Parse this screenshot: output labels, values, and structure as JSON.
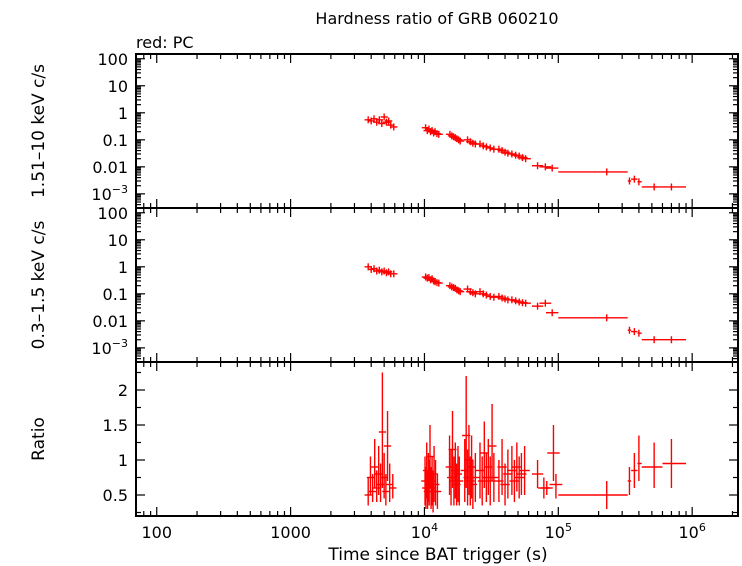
{
  "chart_data": {
    "type": "scatter",
    "title": "Hardness ratio of GRB 060210",
    "legend_text": "red: PC",
    "xlabel": "Time since BAT trigger (s)",
    "x_scale": "log",
    "xlim": [
      70,
      2200000
    ],
    "x_tick_labels": [
      {
        "value": 100,
        "base": "100",
        "exp": ""
      },
      {
        "value": 1000,
        "base": "1000",
        "exp": ""
      },
      {
        "value": 10000,
        "base": "10",
        "exp": "4"
      },
      {
        "value": 100000,
        "base": "10",
        "exp": "5"
      },
      {
        "value": 1000000,
        "base": "10",
        "exp": "6"
      }
    ],
    "series_color": "#ff0000",
    "panels": [
      {
        "ylabel": "1.51–10 keV c/s",
        "y_scale": "log",
        "ylim": [
          0.0003,
          150
        ],
        "y_tick_labels": [
          {
            "value": 100,
            "base": "100",
            "exp": ""
          },
          {
            "value": 10,
            "base": "10",
            "exp": ""
          },
          {
            "value": 1,
            "base": "1",
            "exp": ""
          },
          {
            "value": 0.1,
            "base": "0.1",
            "exp": ""
          },
          {
            "value": 0.01,
            "base": "0.01",
            "exp": ""
          },
          {
            "value": 0.001,
            "base": "10",
            "exp": "−3"
          }
        ],
        "points": [
          [
            3800,
            0.55
          ],
          [
            4000,
            0.5
          ],
          [
            4200,
            0.6
          ],
          [
            4400,
            0.45
          ],
          [
            4600,
            0.55
          ],
          [
            4800,
            0.4
          ],
          [
            5000,
            0.7
          ],
          [
            5200,
            0.45
          ],
          [
            5400,
            0.5
          ],
          [
            5600,
            0.35
          ],
          [
            5900,
            0.3
          ],
          [
            10200,
            0.28
          ],
          [
            10500,
            0.22
          ],
          [
            10800,
            0.25
          ],
          [
            11100,
            0.2
          ],
          [
            11400,
            0.22
          ],
          [
            11700,
            0.18
          ],
          [
            12000,
            0.2
          ],
          [
            12400,
            0.17
          ],
          [
            12800,
            0.16
          ],
          [
            15500,
            0.16
          ],
          [
            16000,
            0.14
          ],
          [
            16500,
            0.13
          ],
          [
            17000,
            0.12
          ],
          [
            17500,
            0.11
          ],
          [
            18000,
            0.1
          ],
          [
            18500,
            0.09
          ],
          [
            21000,
            0.1
          ],
          [
            22000,
            0.085
          ],
          [
            23000,
            0.075
          ],
          [
            24000,
            0.07
          ],
          [
            26000,
            0.07
          ],
          [
            27500,
            0.06
          ],
          [
            29000,
            0.055
          ],
          [
            31000,
            0.05
          ],
          [
            33000,
            0.045
          ],
          [
            36000,
            0.045
          ],
          [
            38000,
            0.04
          ],
          [
            40000,
            0.035
          ],
          [
            42000,
            0.032
          ],
          [
            45000,
            0.03
          ],
          [
            48000,
            0.027
          ],
          [
            51000,
            0.025
          ],
          [
            54000,
            0.022
          ],
          [
            57000,
            0.02
          ],
          [
            70000,
            0.011
          ],
          [
            80000,
            0.01
          ],
          [
            90000,
            0.009
          ]
        ],
        "binned": [
          {
            "x": 230000,
            "x_lo": 100000,
            "x_hi": 330000,
            "y": 0.0065
          },
          {
            "x": 340000,
            "x_lo": 330000,
            "x_hi": 350000,
            "y": 0.003
          },
          {
            "x": 370000,
            "x_lo": 350000,
            "x_hi": 390000,
            "y": 0.0035
          },
          {
            "x": 400000,
            "x_lo": 390000,
            "x_hi": 420000,
            "y": 0.0028
          },
          {
            "x": 520000,
            "x_lo": 420000,
            "x_hi": 600000,
            "y": 0.0018
          },
          {
            "x": 700000,
            "x_lo": 600000,
            "x_hi": 900000,
            "y": 0.0018
          }
        ]
      },
      {
        "ylabel": "0.3–1.5 keV c/s",
        "y_scale": "log",
        "ylim": [
          0.0003,
          150
        ],
        "y_tick_labels": [
          {
            "value": 100,
            "base": "100",
            "exp": ""
          },
          {
            "value": 10,
            "base": "10",
            "exp": ""
          },
          {
            "value": 1,
            "base": "1",
            "exp": ""
          },
          {
            "value": 0.1,
            "base": "0.1",
            "exp": ""
          },
          {
            "value": 0.01,
            "base": "0.01",
            "exp": ""
          },
          {
            "value": 0.001,
            "base": "10",
            "exp": "−3"
          }
        ],
        "points": [
          [
            3800,
            1.0
          ],
          [
            4000,
            0.8
          ],
          [
            4200,
            0.85
          ],
          [
            4400,
            0.7
          ],
          [
            4600,
            0.75
          ],
          [
            4800,
            0.65
          ],
          [
            5000,
            0.7
          ],
          [
            5200,
            0.6
          ],
          [
            5400,
            0.65
          ],
          [
            5600,
            0.55
          ],
          [
            5900,
            0.55
          ],
          [
            10200,
            0.42
          ],
          [
            10500,
            0.38
          ],
          [
            10800,
            0.4
          ],
          [
            11100,
            0.33
          ],
          [
            11400,
            0.36
          ],
          [
            11700,
            0.3
          ],
          [
            12000,
            0.28
          ],
          [
            12400,
            0.26
          ],
          [
            12800,
            0.25
          ],
          [
            15500,
            0.2
          ],
          [
            16000,
            0.18
          ],
          [
            16500,
            0.17
          ],
          [
            17000,
            0.16
          ],
          [
            17500,
            0.14
          ],
          [
            18000,
            0.13
          ],
          [
            18500,
            0.12
          ],
          [
            21000,
            0.15
          ],
          [
            22000,
            0.12
          ],
          [
            23000,
            0.11
          ],
          [
            24000,
            0.1
          ],
          [
            26000,
            0.12
          ],
          [
            27500,
            0.1
          ],
          [
            29000,
            0.09
          ],
          [
            31000,
            0.08
          ],
          [
            33000,
            0.075
          ],
          [
            36000,
            0.08
          ],
          [
            38000,
            0.07
          ],
          [
            40000,
            0.065
          ],
          [
            42000,
            0.06
          ],
          [
            45000,
            0.06
          ],
          [
            48000,
            0.055
          ],
          [
            51000,
            0.05
          ],
          [
            54000,
            0.047
          ],
          [
            57000,
            0.045
          ],
          [
            70000,
            0.035
          ],
          [
            80000,
            0.045
          ],
          [
            90000,
            0.02
          ]
        ],
        "binned": [
          {
            "x": 230000,
            "x_lo": 100000,
            "x_hi": 330000,
            "y": 0.013
          },
          {
            "x": 340000,
            "x_lo": 330000,
            "x_hi": 350000,
            "y": 0.0045
          },
          {
            "x": 370000,
            "x_lo": 350000,
            "x_hi": 390000,
            "y": 0.004
          },
          {
            "x": 400000,
            "x_lo": 390000,
            "x_hi": 420000,
            "y": 0.0035
          },
          {
            "x": 520000,
            "x_lo": 420000,
            "x_hi": 600000,
            "y": 0.002
          },
          {
            "x": 700000,
            "x_lo": 600000,
            "x_hi": 900000,
            "y": 0.002
          }
        ]
      },
      {
        "ylabel": "Ratio",
        "y_scale": "linear",
        "ylim": [
          0.2,
          2.4
        ],
        "y_tick_labels": [
          {
            "value": 2,
            "base": "2",
            "exp": ""
          },
          {
            "value": 1.5,
            "base": "1.5",
            "exp": ""
          },
          {
            "value": 1,
            "base": "1",
            "exp": ""
          },
          {
            "value": 0.5,
            "base": "0.5",
            "exp": ""
          }
        ],
        "points": [
          [
            3800,
            0.5,
            0.35,
            0.75
          ],
          [
            3950,
            0.75,
            0.5,
            1.05
          ],
          [
            4100,
            0.55,
            0.4,
            0.8
          ],
          [
            4250,
            0.9,
            0.6,
            1.3
          ],
          [
            4400,
            0.6,
            0.4,
            0.85
          ],
          [
            4550,
            0.8,
            0.5,
            1.2
          ],
          [
            4700,
            0.65,
            0.4,
            0.95
          ],
          [
            4850,
            1.4,
            0.6,
            2.25
          ],
          [
            5000,
            0.75,
            0.45,
            1.1
          ],
          [
            5150,
            0.55,
            0.35,
            0.8
          ],
          [
            5300,
            1.2,
            0.7,
            1.7
          ],
          [
            5500,
            0.65,
            0.4,
            0.95
          ],
          [
            5800,
            0.6,
            0.45,
            0.8
          ],
          [
            10100,
            0.7,
            0.35,
            1.05
          ],
          [
            10250,
            0.6,
            0.3,
            0.9
          ],
          [
            10400,
            0.85,
            0.45,
            1.25
          ],
          [
            10550,
            0.55,
            0.3,
            0.85
          ],
          [
            10700,
            0.75,
            0.4,
            1.1
          ],
          [
            10850,
            0.65,
            0.35,
            1.0
          ],
          [
            11000,
            1.05,
            0.6,
            1.5
          ],
          [
            11200,
            0.6,
            0.3,
            0.9
          ],
          [
            11400,
            0.7,
            0.35,
            1.05
          ],
          [
            11600,
            0.55,
            0.25,
            0.85
          ],
          [
            11800,
            0.8,
            0.4,
            1.2
          ],
          [
            12100,
            0.65,
            0.35,
            1.0
          ],
          [
            12500,
            0.55,
            0.3,
            0.8
          ],
          [
            15400,
            0.9,
            0.5,
            1.35
          ],
          [
            15800,
            0.75,
            0.35,
            1.15
          ],
          [
            16200,
            1.15,
            0.6,
            1.7
          ],
          [
            16600,
            0.7,
            0.35,
            1.05
          ],
          [
            17000,
            0.85,
            0.45,
            1.25
          ],
          [
            17400,
            0.65,
            0.35,
            0.95
          ],
          [
            17800,
            0.8,
            0.4,
            1.2
          ],
          [
            18200,
            0.7,
            0.35,
            1.05
          ],
          [
            20000,
            0.85,
            0.4,
            1.3
          ],
          [
            20500,
            1.35,
            0.6,
            2.2
          ],
          [
            21000,
            0.75,
            0.35,
            1.15
          ],
          [
            21500,
            1.0,
            0.5,
            1.5
          ],
          [
            22000,
            0.7,
            0.35,
            1.05
          ],
          [
            22500,
            0.9,
            0.45,
            1.35
          ],
          [
            23000,
            0.65,
            0.3,
            1.0
          ],
          [
            24000,
            0.75,
            0.4,
            1.1
          ],
          [
            26000,
            0.85,
            0.45,
            1.25
          ],
          [
            27000,
            0.7,
            0.35,
            1.05
          ],
          [
            28000,
            1.1,
            0.6,
            1.55
          ],
          [
            29000,
            0.75,
            0.4,
            1.1
          ],
          [
            30000,
            0.9,
            0.5,
            1.3
          ],
          [
            31000,
            0.7,
            0.35,
            1.05
          ],
          [
            32000,
            1.2,
            0.7,
            1.8
          ],
          [
            33000,
            0.75,
            0.4,
            1.1
          ],
          [
            36000,
            0.7,
            0.4,
            1.0
          ],
          [
            38000,
            0.9,
            0.5,
            1.3
          ],
          [
            40000,
            0.65,
            0.35,
            0.95
          ],
          [
            42000,
            0.8,
            0.45,
            1.15
          ],
          [
            45000,
            0.85,
            0.5,
            1.2
          ],
          [
            47000,
            0.7,
            0.4,
            1.0
          ],
          [
            49000,
            0.9,
            0.55,
            1.25
          ],
          [
            51000,
            0.75,
            0.45,
            1.05
          ],
          [
            53000,
            0.8,
            0.5,
            1.1
          ],
          [
            56000,
            0.85,
            0.5,
            1.2
          ],
          [
            70000,
            0.8,
            0.6,
            1.0
          ],
          [
            78000,
            0.6,
            0.45,
            0.75
          ],
          [
            82000,
            0.6,
            0.5,
            0.7
          ],
          [
            92000,
            1.1,
            0.7,
            1.5
          ],
          [
            96000,
            0.65,
            0.45,
            0.8
          ]
        ],
        "binned": [
          {
            "x": 230000,
            "x_lo": 100000,
            "x_hi": 330000,
            "y": 0.5,
            "y_lo": 0.3,
            "y_hi": 0.7
          },
          {
            "x": 340000,
            "x_lo": 330000,
            "x_hi": 350000,
            "y": 0.7,
            "y_lo": 0.5,
            "y_hi": 0.9
          },
          {
            "x": 370000,
            "x_lo": 350000,
            "x_hi": 390000,
            "y": 0.85,
            "y_lo": 0.6,
            "y_hi": 1.1
          },
          {
            "x": 400000,
            "x_lo": 390000,
            "x_hi": 420000,
            "y": 0.95,
            "y_lo": 0.7,
            "y_hi": 1.35
          },
          {
            "x": 520000,
            "x_lo": 420000,
            "x_hi": 600000,
            "y": 0.9,
            "y_lo": 0.6,
            "y_hi": 1.25
          },
          {
            "x": 700000,
            "x_lo": 600000,
            "x_hi": 900000,
            "y": 0.95,
            "y_lo": 0.6,
            "y_hi": 1.3
          }
        ]
      }
    ]
  }
}
